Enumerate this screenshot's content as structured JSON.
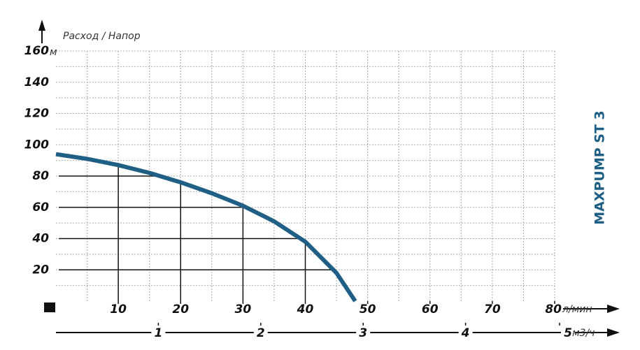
{
  "chart_data": {
    "type": "line",
    "title": "MAXPUMP ST 3",
    "y_label": "Расход / Напор",
    "y_unit": "м",
    "x_unit": "л/мин",
    "x2_unit": "м3/ч",
    "x": [
      0,
      5,
      10,
      15,
      20,
      25,
      30,
      35,
      40,
      45,
      48
    ],
    "values": [
      94,
      91,
      87,
      82,
      76,
      69,
      61,
      51,
      38,
      18,
      0
    ],
    "color": "#1f5f86",
    "xlim": [
      0,
      80
    ],
    "xticks": [
      10,
      20,
      30,
      40,
      50,
      60,
      70,
      80
    ],
    "ylim": [
      0,
      160
    ],
    "yticks": [
      20,
      40,
      60,
      80,
      100,
      120,
      140,
      160
    ],
    "x2lim": [
      0,
      5
    ],
    "x2ticks": [
      1,
      2,
      3,
      4,
      5
    ],
    "grid": true
  }
}
